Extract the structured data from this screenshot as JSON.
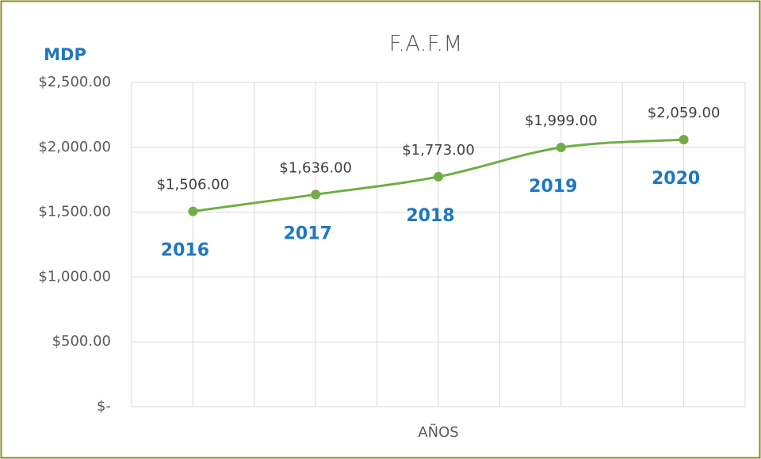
{
  "chart_data": {
    "type": "line",
    "title": "F.A.F.M",
    "y_label": "MDP",
    "x_label": "AÑOS",
    "categories": [
      "2016",
      "2017",
      "2018",
      "2019",
      "2020"
    ],
    "series": [
      {
        "name": "F.A.F.M",
        "color": "#70ad47",
        "values": [
          1506,
          1636,
          1773,
          1999,
          2059
        ],
        "value_labels": [
          "$1,506.00",
          "$1,636.00",
          "$1,773.00",
          "$1,999.00",
          "$2,059.00"
        ]
      }
    ],
    "ylim": [
      0,
      2500
    ],
    "yticks": [
      {
        "value": 0,
        "label": "$-"
      },
      {
        "value": 500,
        "label": "$500.00"
      },
      {
        "value": 1000,
        "label": "$1,000.00"
      },
      {
        "value": 1500,
        "label": "$1,500.00"
      },
      {
        "value": 2000,
        "label": "$2,000.00"
      },
      {
        "value": 2500,
        "label": "$2,500.00"
      }
    ],
    "grid": true
  }
}
